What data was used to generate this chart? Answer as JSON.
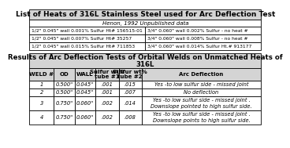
{
  "title1": "List of Heats of 316L Stainless Steel used for Arc Deflection Test",
  "subtitle1": "Henon, 1992 Unpublished data",
  "top_table": [
    [
      "1/2\" 0.045\" wall 0.001% Sulfur Ht# 156515-01",
      "3/4\" 0.060\" wall 0.002% Sulfur - no heat #"
    ],
    [
      "1/2\" 0.045\" wall 0.007% Sulfur Ht# 35257",
      "3/4\" 0.060\" wall 0.008% Sulfur - no heat #"
    ],
    [
      "1/2\" 0.045\" wall 0.015% Sulfur Ht# 711853",
      "3/4\" 0.060\" wall 0.014% Sulfur Ht.# 913177"
    ]
  ],
  "title2a": "Results of Arc Deflection Tests of Orbital Welds on Unmatched Heats of",
  "title2b": "316L",
  "bottom_headers": [
    "WELD #",
    "OD",
    "WALL",
    "Sulfur wt%\ntube #1",
    "Sulfur wt%\ntube #2",
    "Arc Deflection"
  ],
  "bottom_table": [
    [
      "1",
      "0.500\"",
      "0.045\"",
      ".001",
      ".015",
      "Yes -to low sulfur side - missed joint"
    ],
    [
      "2",
      "0.500\"",
      "0.045\"",
      ".001",
      ".007",
      "No deflection"
    ],
    [
      "3",
      "0.750\"",
      "0.060\"",
      ".002",
      ".014",
      "Yes -to low sulfur side - missed joint .\nDownslope pointed to high sulfur side."
    ],
    [
      "4",
      "0.750\"",
      "0.060\"",
      ".002",
      ".008",
      "Yes -to low sulfur side - missed joint .\nDownslope points to high sulfur side."
    ]
  ],
  "gray_fill": "#d4d4d4",
  "white_fill": "#ffffff",
  "border_color": "#000000",
  "lw": 0.6,
  "title1_fs": 6.5,
  "subtitle_fs": 5.0,
  "cell_fs": 4.8,
  "header_fs": 5.0,
  "title2_fs": 6.2
}
